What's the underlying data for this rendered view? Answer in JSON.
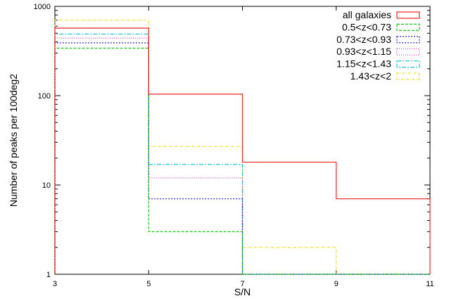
{
  "chart_data": {
    "type": "histogram",
    "title": "",
    "xlabel": "S/N",
    "ylabel": "Number of peaks per 100deg2",
    "xlim": [
      3,
      11
    ],
    "ylim": [
      1,
      1000
    ],
    "yscale": "log",
    "xticks": [
      "3",
      "5",
      "7",
      "9",
      "11"
    ],
    "yticks": [
      "1",
      "10",
      "100",
      "1000"
    ],
    "bins": [
      3,
      5,
      7,
      9,
      11
    ],
    "legend_position": "top-right",
    "series": [
      {
        "name": "all galaxies",
        "values": [
          570,
          104,
          18,
          7
        ],
        "color": "#e8261e",
        "dash": ""
      },
      {
        "name": "0.5<z<0.73",
        "values": [
          340,
          3,
          1,
          1
        ],
        "color": "#1fc21f",
        "dash": "4,2"
      },
      {
        "name": "0.73<z<0.93",
        "values": [
          390,
          7,
          1,
          1
        ],
        "color": "#1a1ab8",
        "dash": "2,2"
      },
      {
        "name": "0.93<z<1.15",
        "values": [
          440,
          12,
          1,
          1
        ],
        "color": "#c03cc0",
        "dash": "1,2"
      },
      {
        "name": "1.15<z<1.43",
        "values": [
          490,
          17,
          1,
          1
        ],
        "color": "#22c6d6",
        "dash": "6,2,2,2"
      },
      {
        "name": "1.43<z<2",
        "values": [
          700,
          27,
          2,
          1
        ],
        "color": "#e6d81a",
        "dash": "3,2,1,2"
      }
    ]
  }
}
